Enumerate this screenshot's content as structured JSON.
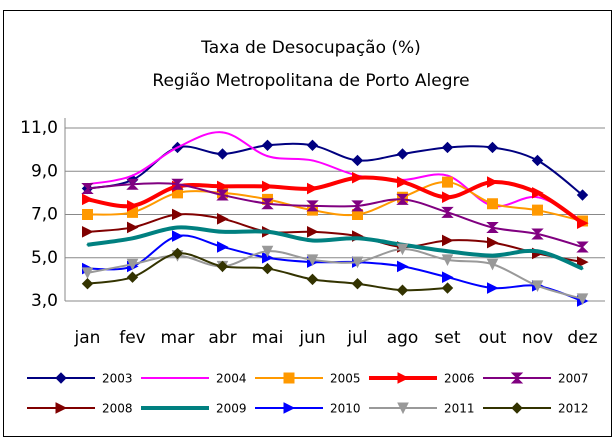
{
  "chart_data": {
    "type": "line",
    "title": "Taxa de Desocupação (%)",
    "subtitle": "Região Metropolitana de Porto Alegre",
    "categories": [
      "jan",
      "fev",
      "mar",
      "abr",
      "mai",
      "jun",
      "jul",
      "ago",
      "set",
      "out",
      "nov",
      "dez"
    ],
    "ylim": [
      3,
      11
    ],
    "yticks": [
      {
        "value": 3,
        "label": "3,0"
      },
      {
        "value": 5,
        "label": "5,0"
      },
      {
        "value": 7,
        "label": "7,0"
      },
      {
        "value": 9,
        "label": "9,0"
      },
      {
        "value": 11,
        "label": "11,0"
      }
    ],
    "grid": true,
    "smooth": true,
    "legend": "bottom",
    "series": [
      {
        "name": "2003",
        "color": "#000080",
        "marker": "diamond",
        "line_width": 2,
        "values": [
          8.2,
          8.6,
          10.1,
          9.8,
          10.2,
          10.2,
          9.5,
          9.8,
          10.1,
          10.1,
          9.5,
          7.9
        ]
      },
      {
        "name": "2004",
        "color": "#ff00ff",
        "marker": "none",
        "line_width": 2,
        "values": [
          8.4,
          8.8,
          10.1,
          10.8,
          9.7,
          9.5,
          8.8,
          8.6,
          8.8,
          7.4,
          7.8,
          6.7
        ]
      },
      {
        "name": "2005",
        "color": "#ff9900",
        "marker": "square",
        "line_width": 2,
        "values": [
          7.0,
          7.1,
          8.0,
          8.0,
          7.7,
          7.2,
          7.0,
          7.8,
          8.5,
          7.5,
          7.2,
          6.7
        ]
      },
      {
        "name": "2006",
        "color": "#ff0000",
        "marker": "triangle-right",
        "line_width": 4,
        "values": [
          7.7,
          7.4,
          8.3,
          8.3,
          8.3,
          8.2,
          8.7,
          8.5,
          7.8,
          8.5,
          8.0,
          6.6
        ]
      },
      {
        "name": "2007",
        "color": "#800080",
        "marker": "hourglass",
        "line_width": 2,
        "values": [
          8.2,
          8.4,
          8.4,
          7.9,
          7.5,
          7.4,
          7.4,
          7.7,
          7.1,
          6.4,
          6.1,
          5.5
        ]
      },
      {
        "name": "2008",
        "color": "#800000",
        "marker": "triangle-right",
        "line_width": 2,
        "values": [
          6.2,
          6.4,
          7.0,
          6.8,
          6.2,
          6.2,
          6.0,
          5.5,
          5.8,
          5.7,
          5.2,
          4.8
        ]
      },
      {
        "name": "2009",
        "color": "#008080",
        "marker": "none",
        "line_width": 4,
        "values": [
          5.6,
          5.9,
          6.4,
          6.2,
          6.2,
          5.8,
          5.9,
          5.6,
          5.3,
          5.1,
          5.3,
          4.5
        ]
      },
      {
        "name": "2010",
        "color": "#0000ff",
        "marker": "triangle-right",
        "line_width": 2,
        "values": [
          4.5,
          4.6,
          6.0,
          5.5,
          5.0,
          4.8,
          4.8,
          4.6,
          4.1,
          3.6,
          3.7,
          3.0
        ]
      },
      {
        "name": "2011",
        "color": "#999999",
        "marker": "triangle-down",
        "line_width": 2,
        "values": [
          4.3,
          4.7,
          5.1,
          4.6,
          5.3,
          4.9,
          4.8,
          5.4,
          4.9,
          4.7,
          3.7,
          3.1
        ]
      },
      {
        "name": "2012",
        "color": "#333300",
        "marker": "diamond",
        "line_width": 2,
        "values": [
          3.8,
          4.1,
          5.2,
          4.6,
          4.5,
          4.0,
          3.8,
          3.5,
          3.6,
          null,
          null,
          null
        ]
      }
    ]
  }
}
